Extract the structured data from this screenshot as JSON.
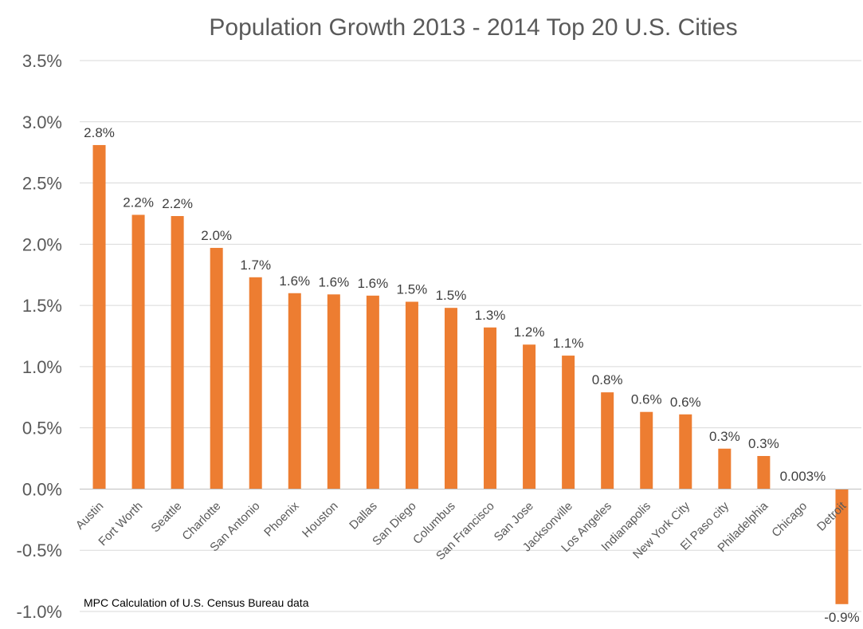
{
  "chart_data": {
    "type": "bar",
    "title": "Population Growth 2013 - 2014 Top 20 U.S. Cities",
    "source_note": "MPC Calculation of U.S. Census Bureau data",
    "xlabel": "",
    "ylabel": "",
    "ylim": [
      -1.0,
      3.5
    ],
    "yticks": [
      3.5,
      3.0,
      2.5,
      2.0,
      1.5,
      1.0,
      0.5,
      0.0,
      -0.5,
      -1.0
    ],
    "ytick_labels": [
      "3.5%",
      "3.0%",
      "2.5%",
      "2.0%",
      "1.5%",
      "1.0%",
      "0.5%",
      "0.0%",
      "-0.5%",
      "-1.0%"
    ],
    "grid": true,
    "bar_color": "#ED7D31",
    "categories": [
      "Austin",
      "Fort Worth",
      "Seattle",
      "Charlotte",
      "San Antonio",
      "Phoenix",
      "Houston",
      "Dallas",
      "San Diego",
      "Columbus",
      "San Francisco",
      "San Jose",
      "Jacksonville",
      "Los Angeles",
      "Indianapolis",
      "New York City",
      "El Paso city",
      "Philadelphia",
      "Chicago",
      "Detroit"
    ],
    "values": [
      2.81,
      2.24,
      2.23,
      1.97,
      1.73,
      1.6,
      1.59,
      1.58,
      1.53,
      1.48,
      1.32,
      1.18,
      1.09,
      0.79,
      0.63,
      0.61,
      0.33,
      0.27,
      0.003,
      -0.94
    ],
    "data_labels": [
      "2.8%",
      "2.2%",
      "2.2%",
      "2.0%",
      "1.7%",
      "1.6%",
      "1.6%",
      "1.6%",
      "1.5%",
      "1.5%",
      "1.3%",
      "1.2%",
      "1.1%",
      "0.8%",
      "0.6%",
      "0.6%",
      "0.3%",
      "0.3%",
      "0.003%",
      "-0.9%"
    ]
  }
}
